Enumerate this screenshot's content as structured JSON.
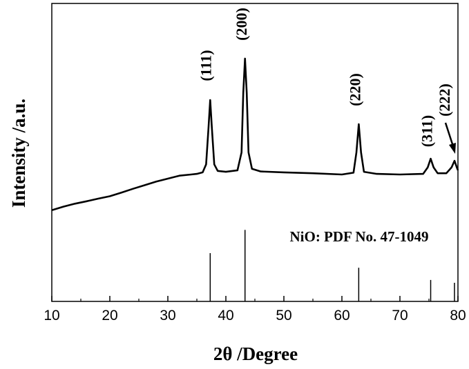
{
  "chart_data": {
    "type": "line",
    "xlabel": "2θ /Degree",
    "ylabel": "Intensity /a.u.",
    "xlim": [
      10,
      80
    ],
    "ylim": [
      0,
      100
    ],
    "xticks": [
      10,
      20,
      30,
      40,
      50,
      60,
      70,
      80
    ],
    "xminorticks": [
      15,
      25,
      35,
      45,
      55,
      65,
      75
    ],
    "series": [
      {
        "name": "NiO",
        "color": "#000000",
        "x": [
          10,
          12,
          14,
          16,
          18,
          20,
          22,
          24,
          26,
          28,
          30,
          32,
          34,
          35,
          36,
          36.6,
          37.0,
          37.3,
          37.6,
          38.0,
          38.6,
          40,
          42,
          42.7,
          43.0,
          43.3,
          43.6,
          43.9,
          44.5,
          46,
          50,
          55,
          60,
          62,
          62.5,
          62.9,
          63.3,
          63.8,
          66,
          70,
          74,
          74.8,
          75.3,
          75.8,
          76.5,
          78,
          78.9,
          79.4,
          79.8,
          80
        ],
        "values": [
          30.6,
          31.8,
          32.8,
          33.6,
          34.5,
          35.3,
          36.5,
          37.8,
          39.0,
          40.2,
          41.2,
          42.2,
          42.6,
          42.8,
          43.3,
          46,
          58,
          67.6,
          58,
          46,
          43.8,
          43.5,
          44,
          50,
          70,
          81.5,
          70,
          50,
          44.5,
          43.6,
          43.3,
          43,
          42.6,
          43.2,
          50,
          59.5,
          50,
          43.5,
          42.8,
          42.6,
          42.8,
          45,
          47.9,
          45,
          43,
          43,
          45,
          47.2,
          45,
          44
        ]
      }
    ],
    "reference": {
      "name": "NiO: PDF No. 47-1049",
      "color": "#000000",
      "x": [
        37.3,
        43.3,
        62.9,
        75.3,
        79.4
      ],
      "values": [
        16.2,
        24,
        11.3,
        7.2,
        6.25
      ]
    },
    "annotations": [
      "(111)",
      "(200)",
      "(220)",
      "(311)",
      "(222)"
    ]
  }
}
